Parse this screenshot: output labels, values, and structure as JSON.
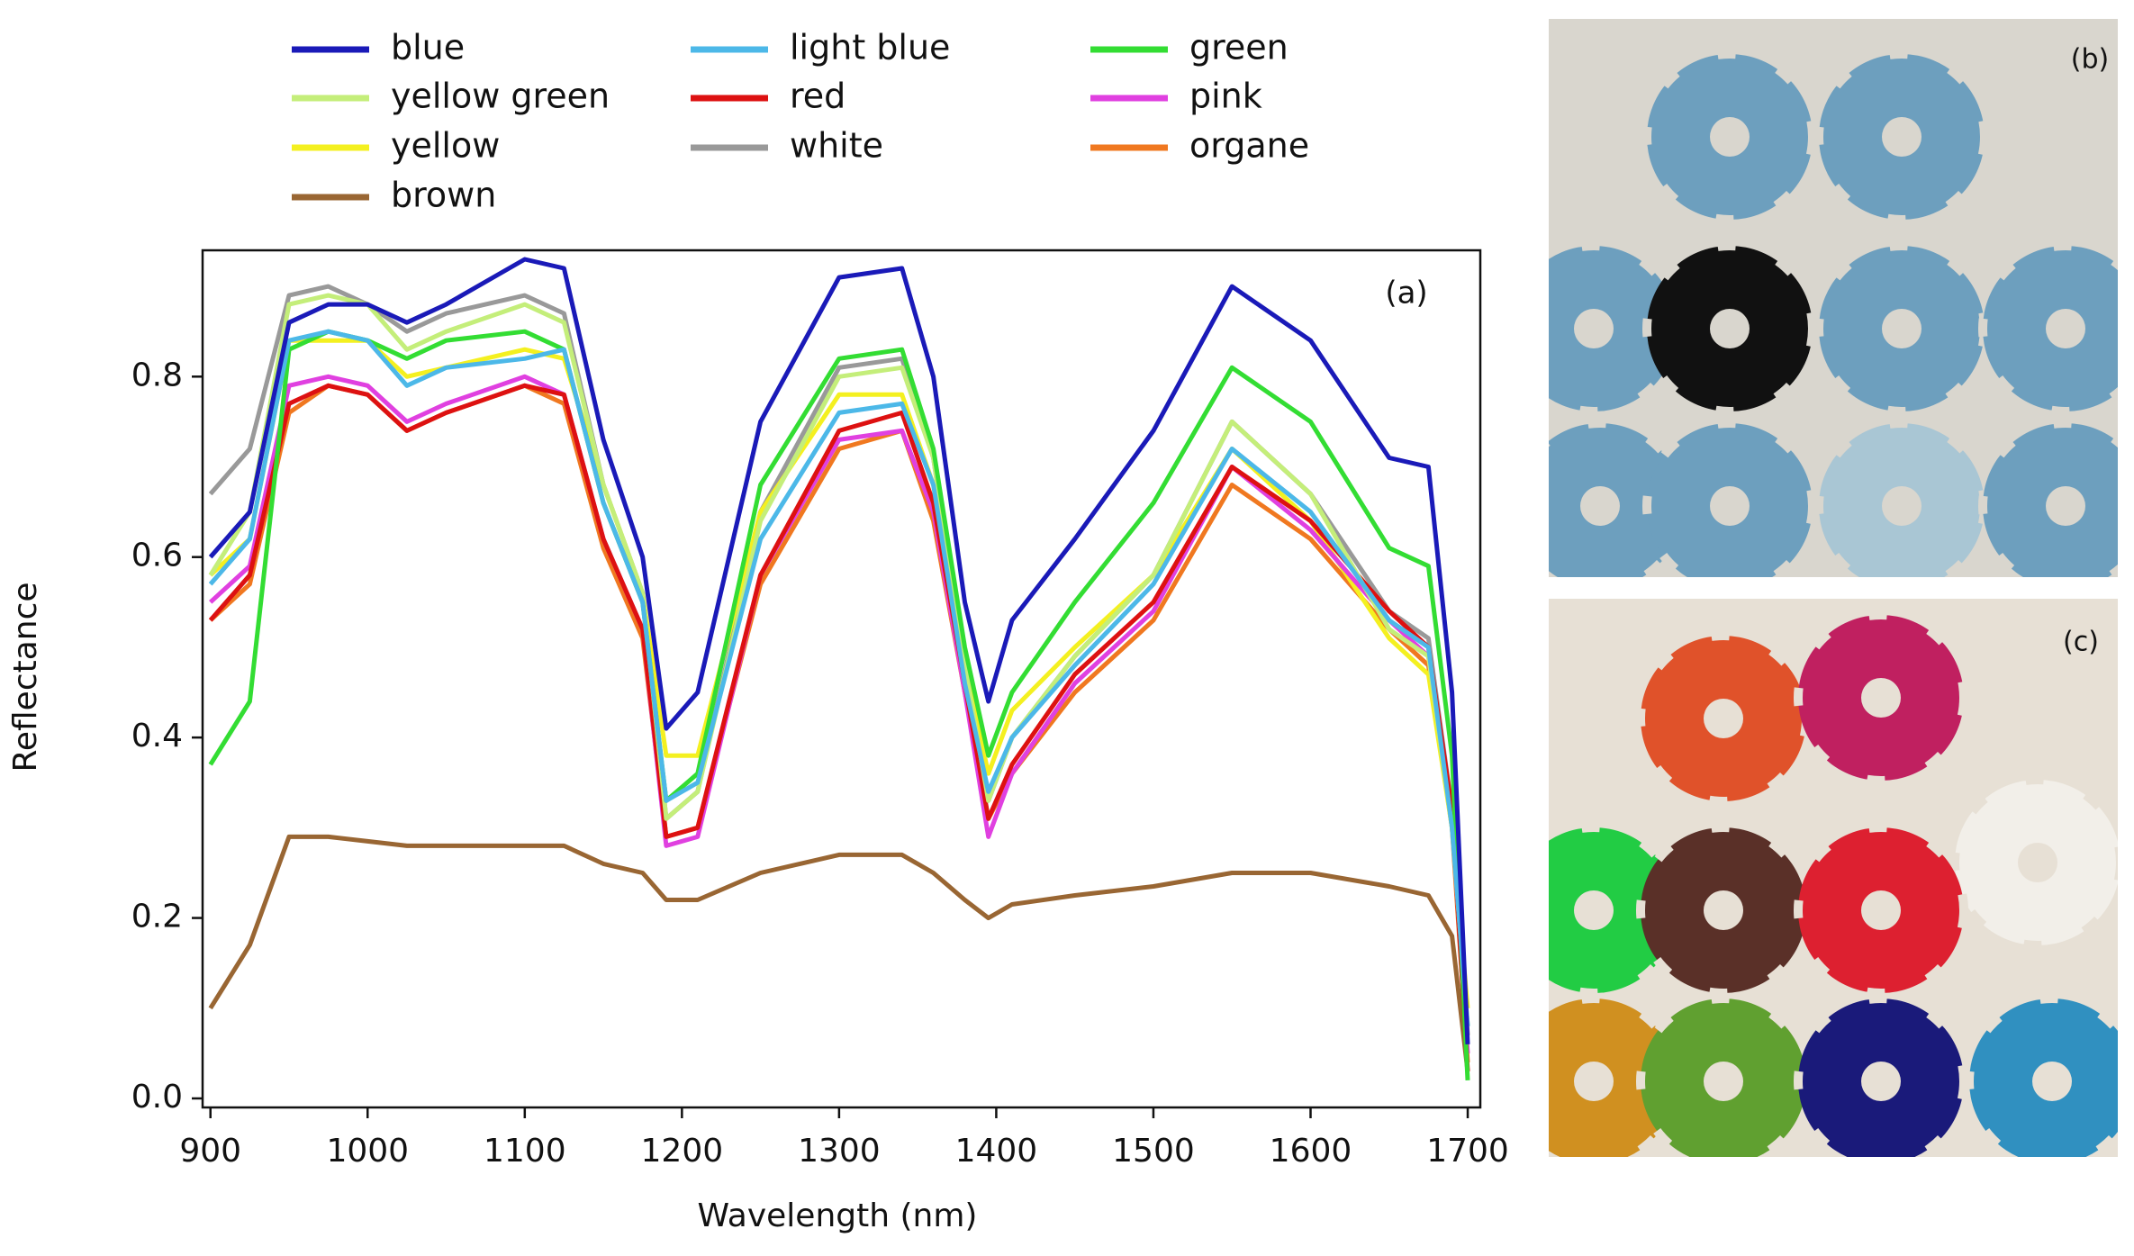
{
  "chart_data": {
    "type": "line",
    "x_label": "Wavelength (nm)",
    "y_label": "Reflectance",
    "annotation": "(a)",
    "xlim": [
      895,
      1708
    ],
    "ylim": [
      -0.01,
      0.94
    ],
    "xticks": [
      900,
      1000,
      1100,
      1200,
      1300,
      1400,
      1500,
      1600,
      1700
    ],
    "yticks": [
      {
        "value": 0,
        "label": "0.0"
      },
      0.2,
      0.4,
      0.6,
      0.8
    ],
    "x": [
      900,
      925,
      950,
      975,
      1000,
      1025,
      1050,
      1100,
      1125,
      1150,
      1175,
      1190,
      1210,
      1250,
      1300,
      1340,
      1360,
      1380,
      1395,
      1410,
      1450,
      1500,
      1550,
      1600,
      1650,
      1675,
      1690,
      1700
    ],
    "series": [
      {
        "name": "blue",
        "color": "#1a1ab8",
        "values": [
          0.6,
          0.65,
          0.86,
          0.88,
          0.88,
          0.86,
          0.88,
          0.93,
          0.92,
          0.73,
          0.6,
          0.41,
          0.45,
          0.75,
          0.91,
          0.92,
          0.8,
          0.55,
          0.44,
          0.53,
          0.62,
          0.74,
          0.9,
          0.84,
          0.71,
          0.7,
          0.45,
          0.06
        ]
      },
      {
        "name": "light blue",
        "color": "#4cb8e8",
        "values": [
          0.57,
          0.62,
          0.84,
          0.85,
          0.84,
          0.79,
          0.81,
          0.82,
          0.83,
          0.66,
          0.55,
          0.33,
          0.35,
          0.62,
          0.76,
          0.77,
          0.68,
          0.46,
          0.34,
          0.4,
          0.48,
          0.57,
          0.72,
          0.65,
          0.53,
          0.5,
          0.3,
          0.08
        ]
      },
      {
        "name": "green",
        "color": "#33dd33",
        "values": [
          0.37,
          0.44,
          0.83,
          0.85,
          0.84,
          0.82,
          0.84,
          0.85,
          0.83,
          0.66,
          0.55,
          0.33,
          0.36,
          0.68,
          0.82,
          0.83,
          0.72,
          0.5,
          0.38,
          0.45,
          0.55,
          0.66,
          0.81,
          0.75,
          0.61,
          0.59,
          0.38,
          0.02
        ]
      },
      {
        "name": "yellow green",
        "color": "#c4ee7a",
        "values": [
          0.58,
          0.65,
          0.88,
          0.89,
          0.88,
          0.83,
          0.85,
          0.88,
          0.86,
          0.68,
          0.56,
          0.31,
          0.34,
          0.64,
          0.8,
          0.81,
          0.71,
          0.48,
          0.33,
          0.4,
          0.49,
          0.58,
          0.75,
          0.67,
          0.52,
          0.49,
          0.3,
          0.08
        ]
      },
      {
        "name": "red",
        "color": "#dd1111",
        "values": [
          0.53,
          0.58,
          0.77,
          0.79,
          0.78,
          0.74,
          0.76,
          0.79,
          0.78,
          0.62,
          0.52,
          0.29,
          0.3,
          0.58,
          0.74,
          0.76,
          0.66,
          0.46,
          0.31,
          0.37,
          0.47,
          0.55,
          0.7,
          0.64,
          0.54,
          0.5,
          0.32,
          0.03
        ]
      },
      {
        "name": "pink",
        "color": "#e040e0",
        "values": [
          0.55,
          0.59,
          0.79,
          0.8,
          0.79,
          0.75,
          0.77,
          0.8,
          0.78,
          0.62,
          0.52,
          0.28,
          0.29,
          0.58,
          0.73,
          0.74,
          0.65,
          0.45,
          0.29,
          0.36,
          0.46,
          0.54,
          0.7,
          0.63,
          0.53,
          0.49,
          0.31,
          0.05
        ]
      },
      {
        "name": "yellow",
        "color": "#f4f020",
        "values": [
          0.58,
          0.62,
          0.84,
          0.84,
          0.84,
          0.8,
          0.81,
          0.83,
          0.82,
          0.68,
          0.56,
          0.38,
          0.38,
          0.65,
          0.78,
          0.78,
          0.68,
          0.48,
          0.36,
          0.43,
          0.5,
          0.58,
          0.72,
          0.64,
          0.51,
          0.47,
          0.3,
          0.1
        ]
      },
      {
        "name": "white",
        "color": "#999999",
        "values": [
          0.67,
          0.72,
          0.89,
          0.9,
          0.88,
          0.85,
          0.87,
          0.89,
          0.87,
          0.68,
          0.56,
          0.31,
          0.34,
          0.65,
          0.81,
          0.82,
          0.71,
          0.47,
          0.33,
          0.4,
          0.49,
          0.58,
          0.75,
          0.67,
          0.54,
          0.51,
          0.32,
          0.07
        ]
      },
      {
        "name": "organe",
        "color": "#f07820",
        "values": [
          0.53,
          0.57,
          0.76,
          0.79,
          0.78,
          0.74,
          0.76,
          0.79,
          0.77,
          0.61,
          0.51,
          0.29,
          0.3,
          0.57,
          0.72,
          0.74,
          0.64,
          0.45,
          0.31,
          0.36,
          0.45,
          0.53,
          0.68,
          0.62,
          0.52,
          0.48,
          0.3,
          0.04
        ]
      },
      {
        "name": "brown",
        "color": "#996633",
        "values": [
          0.1,
          0.17,
          0.29,
          0.29,
          0.285,
          0.28,
          0.28,
          0.28,
          0.28,
          0.26,
          0.25,
          0.22,
          0.22,
          0.25,
          0.27,
          0.27,
          0.25,
          0.22,
          0.2,
          0.215,
          0.225,
          0.235,
          0.25,
          0.25,
          0.235,
          0.225,
          0.18,
          0.03
        ]
      }
    ]
  },
  "photos": [
    {
      "label": "(b)"
    },
    {
      "label": "(c)"
    }
  ]
}
